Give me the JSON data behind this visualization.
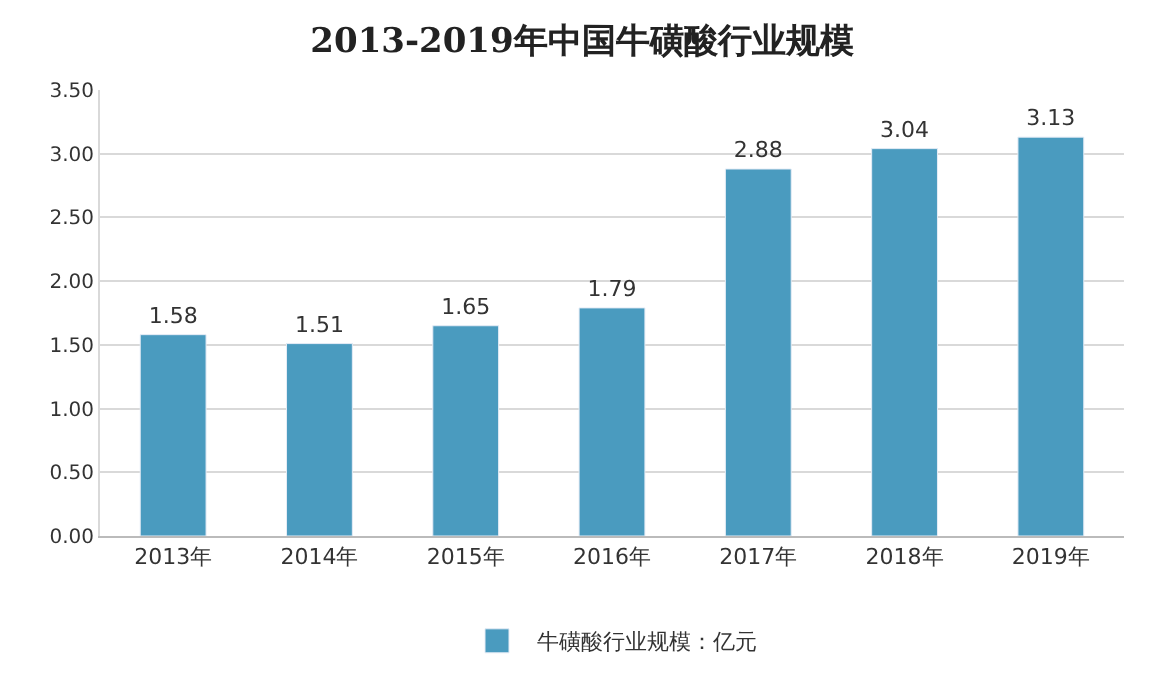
{
  "chart_data": {
    "type": "bar",
    "title": "2013-2019年中国牛磺酸行业规模",
    "categories": [
      "2013年",
      "2014年",
      "2015年",
      "2016年",
      "2017年",
      "2018年",
      "2019年"
    ],
    "series": [
      {
        "name": "牛磺酸行业规模：亿元",
        "color": "#4a9bbf",
        "values": [
          1.58,
          1.51,
          1.65,
          1.79,
          2.88,
          3.04,
          3.13
        ]
      }
    ],
    "ylim": [
      0,
      3.5
    ],
    "yticks": [
      "0.00",
      "0.50",
      "1.00",
      "1.50",
      "2.00",
      "2.50",
      "3.00",
      "3.50"
    ],
    "grid": "y",
    "legend": "bottom",
    "data_labels": true
  }
}
